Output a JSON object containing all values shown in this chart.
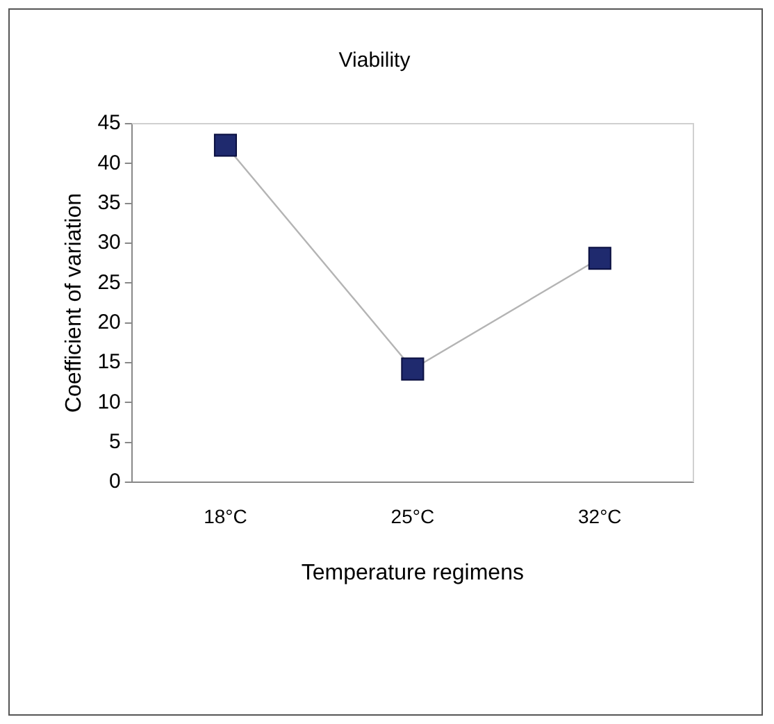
{
  "chart_data": {
    "type": "line",
    "title": "Viability",
    "xlabel": "Temperature regimens",
    "ylabel": "Coefficient of variation",
    "categories": [
      "18°C",
      "25°C",
      "32°C"
    ],
    "series": [
      {
        "color": "#1f2a6e",
        "values": [
          42.3,
          14.2,
          28.1
        ]
      }
    ],
    "ylim": [
      0,
      45
    ],
    "yticks": [
      0,
      5,
      10,
      15,
      20,
      25,
      30,
      35,
      40,
      45
    ],
    "grid": false,
    "legend": false,
    "marker": "square",
    "line_style": "solid"
  }
}
